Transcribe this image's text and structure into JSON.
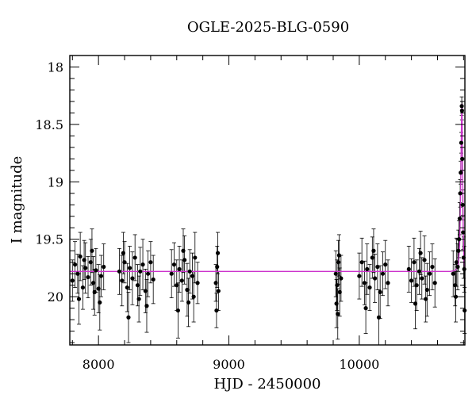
{
  "chart_data": {
    "type": "scatter",
    "title": "OGLE-2025-BLG-0590",
    "xlabel": "HJD - 2450000",
    "ylabel": "I magnitude",
    "xlim": [
      7780,
      10810
    ],
    "ylim": [
      20.42,
      17.9
    ],
    "y_inverted": true,
    "grid": false,
    "xticks": [
      {
        "value": 8000,
        "label": "8000"
      },
      {
        "value": 9000,
        "label": "9000"
      },
      {
        "value": 10000,
        "label": "10000"
      }
    ],
    "yticks": [
      {
        "value": 18,
        "label": "18"
      },
      {
        "value": 18.5,
        "label": "18.5"
      },
      {
        "value": 19,
        "label": "19"
      },
      {
        "value": 19.5,
        "label": "19.5"
      },
      {
        "value": 20,
        "label": "20"
      }
    ],
    "colors": {
      "points": "#000000",
      "model": "#cc33cc",
      "frame": "#000000"
    },
    "series": [
      {
        "kind": "errorbar",
        "points": [
          [
            7800,
            19.86,
            0.18
          ],
          [
            7820,
            19.72,
            0.2
          ],
          [
            7840,
            19.8,
            0.17
          ],
          [
            7860,
            19.65,
            0.21
          ],
          [
            7880,
            19.92,
            0.19
          ],
          [
            7900,
            19.75,
            0.22
          ],
          [
            7920,
            19.83,
            0.18
          ],
          [
            7940,
            19.7,
            0.2
          ],
          [
            7960,
            19.88,
            0.23
          ],
          [
            7980,
            19.77,
            0.19
          ],
          [
            8000,
            19.93,
            0.21
          ],
          [
            8020,
            19.82,
            0.18
          ],
          [
            8040,
            19.74,
            0.2
          ],
          [
            7850,
            20.02,
            0.22
          ],
          [
            7950,
            19.6,
            0.19
          ],
          [
            8010,
            20.05,
            0.24
          ],
          [
            7890,
            19.68,
            0.17
          ],
          [
            7970,
            19.96,
            0.2
          ],
          [
            8160,
            19.78,
            0.2
          ],
          [
            8180,
            19.86,
            0.22
          ],
          [
            8200,
            19.7,
            0.18
          ],
          [
            8220,
            19.92,
            0.21
          ],
          [
            8240,
            19.75,
            0.19
          ],
          [
            8260,
            19.84,
            0.23
          ],
          [
            8280,
            19.66,
            0.2
          ],
          [
            8300,
            19.9,
            0.18
          ],
          [
            8320,
            19.78,
            0.21
          ],
          [
            8340,
            19.72,
            0.22
          ],
          [
            8360,
            19.95,
            0.19
          ],
          [
            8380,
            19.8,
            0.2
          ],
          [
            8400,
            19.7,
            0.18
          ],
          [
            8420,
            19.85,
            0.21
          ],
          [
            8230,
            20.18,
            0.22
          ],
          [
            8310,
            20.02,
            0.2
          ],
          [
            8190,
            19.62,
            0.18
          ],
          [
            8370,
            20.08,
            0.23
          ],
          [
            8560,
            19.8,
            0.21
          ],
          [
            8580,
            19.72,
            0.19
          ],
          [
            8600,
            19.9,
            0.22
          ],
          [
            8620,
            19.76,
            0.2
          ],
          [
            8640,
            19.86,
            0.18
          ],
          [
            8660,
            19.68,
            0.21
          ],
          [
            8680,
            19.94,
            0.23
          ],
          [
            8700,
            19.78,
            0.19
          ],
          [
            8720,
            19.82,
            0.2
          ],
          [
            8740,
            19.66,
            0.22
          ],
          [
            8760,
            19.88,
            0.18
          ],
          [
            8610,
            20.12,
            0.24
          ],
          [
            8690,
            20.05,
            0.21
          ],
          [
            8650,
            19.6,
            0.19
          ],
          [
            8730,
            20.0,
            0.22
          ],
          [
            8900,
            19.88,
            0.16
          ],
          [
            8910,
            19.74,
            0.18
          ],
          [
            8920,
            19.95,
            0.17
          ],
          [
            8905,
            20.12,
            0.15
          ],
          [
            8915,
            19.62,
            0.18
          ],
          [
            9820,
            19.8,
            0.2
          ],
          [
            9830,
            19.9,
            0.22
          ],
          [
            9840,
            19.7,
            0.19
          ],
          [
            9850,
            19.96,
            0.21
          ],
          [
            9860,
            19.84,
            0.2
          ],
          [
            9835,
            20.15,
            0.22
          ],
          [
            9845,
            19.64,
            0.18
          ],
          [
            9825,
            20.06,
            0.21
          ],
          [
            10000,
            19.82,
            0.2
          ],
          [
            10020,
            19.7,
            0.21
          ],
          [
            10040,
            19.88,
            0.19
          ],
          [
            10060,
            19.76,
            0.22
          ],
          [
            10080,
            19.92,
            0.2
          ],
          [
            10100,
            19.66,
            0.18
          ],
          [
            10120,
            19.84,
            0.21
          ],
          [
            10140,
            19.74,
            0.2
          ],
          [
            10160,
            19.96,
            0.23
          ],
          [
            10180,
            19.8,
            0.19
          ],
          [
            10200,
            19.72,
            0.21
          ],
          [
            10220,
            19.88,
            0.2
          ],
          [
            10050,
            20.1,
            0.22
          ],
          [
            10150,
            20.18,
            0.24
          ],
          [
            10110,
            19.6,
            0.19
          ],
          [
            10380,
            19.76,
            0.2
          ],
          [
            10400,
            19.86,
            0.19
          ],
          [
            10420,
            19.7,
            0.21
          ],
          [
            10440,
            19.9,
            0.22
          ],
          [
            10460,
            19.78,
            0.2
          ],
          [
            10480,
            19.84,
            0.18
          ],
          [
            10500,
            19.68,
            0.21
          ],
          [
            10520,
            19.94,
            0.23
          ],
          [
            10540,
            19.8,
            0.19
          ],
          [
            10560,
            19.74,
            0.2
          ],
          [
            10580,
            19.88,
            0.21
          ],
          [
            10430,
            20.06,
            0.22
          ],
          [
            10510,
            20.02,
            0.2
          ],
          [
            10470,
            19.62,
            0.19
          ],
          [
            10720,
            19.8,
            0.2
          ],
          [
            10735,
            19.9,
            0.18
          ],
          [
            10745,
            19.7,
            0.21
          ],
          [
            10755,
            19.74,
            0.2
          ],
          [
            10760,
            19.6,
            0.18
          ],
          [
            10765,
            19.5,
            0.16
          ],
          [
            10770,
            19.32,
            0.14
          ],
          [
            10774,
            19.1,
            0.12
          ],
          [
            10778,
            18.92,
            0.1
          ],
          [
            10782,
            18.66,
            0.09
          ],
          [
            10786,
            18.34,
            0.08
          ],
          [
            10788,
            18.38,
            0.08
          ],
          [
            10790,
            18.8,
            0.1
          ],
          [
            10793,
            19.2,
            0.13
          ],
          [
            10796,
            19.44,
            0.15
          ],
          [
            10800,
            19.66,
            0.18
          ],
          [
            10805,
            19.76,
            0.2
          ],
          [
            10740,
            20.0,
            0.22
          ],
          [
            10808,
            20.12,
            0.2
          ]
        ]
      },
      {
        "kind": "model",
        "points": [
          [
            7780,
            19.78
          ],
          [
            10700,
            19.78
          ],
          [
            10740,
            19.77
          ],
          [
            10760,
            19.72
          ],
          [
            10770,
            19.55
          ],
          [
            10776,
            19.2
          ],
          [
            10780,
            18.85
          ],
          [
            10784,
            18.45
          ],
          [
            10787,
            18.32
          ],
          [
            10790,
            18.55
          ],
          [
            10794,
            19.0
          ],
          [
            10798,
            19.45
          ],
          [
            10803,
            19.68
          ],
          [
            10810,
            19.76
          ]
        ]
      }
    ]
  }
}
